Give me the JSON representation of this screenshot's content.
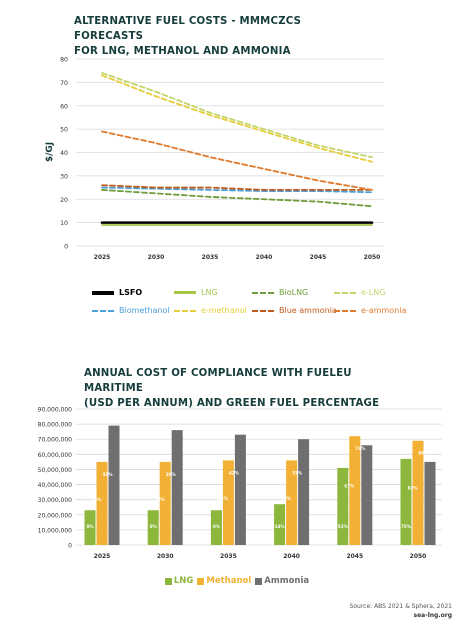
{
  "chart_data": [
    {
      "type": "line",
      "title": "ALTERNATIVE FUEL COSTS - MMMCZCS FORECASTS FOR LNG, METHANOL AND AMMONIA",
      "title_lines": [
        "ALTERNATIVE FUEL COSTS - MMMCZCS FORECASTS",
        "FOR LNG, METHANOL AND AMMONIA"
      ],
      "ylabel": "$/GJ",
      "xlabel": "",
      "x": [
        "2025",
        "2030",
        "2035",
        "2040",
        "2045",
        "2050"
      ],
      "yticks": [
        "0",
        "10",
        "20",
        "30",
        "40",
        "50",
        "60",
        "70",
        "80"
      ],
      "ylim": [
        0,
        80
      ],
      "grid": true,
      "legend_position": "bottom",
      "series": [
        {
          "name": "LSFO",
          "values": [
            10,
            10,
            10,
            10,
            10,
            10
          ],
          "color": "#000000",
          "style": "solid"
        },
        {
          "name": "LNG",
          "values": [
            9,
            9,
            9,
            9,
            9,
            9
          ],
          "color": "#a6c64a",
          "style": "solid"
        },
        {
          "name": "BioLNG",
          "values": [
            24,
            22.5,
            21,
            20,
            19,
            17
          ],
          "color": "#6e9c3a",
          "style": "dashed"
        },
        {
          "name": "e-LNG",
          "values": [
            74,
            66,
            57,
            50,
            43,
            38
          ],
          "color": "#c3d56a",
          "style": "dashed"
        },
        {
          "name": "Biomethanol",
          "values": [
            25,
            24.5,
            24,
            23.5,
            23.5,
            23
          ],
          "color": "#4a9fd8",
          "style": "dashed"
        },
        {
          "name": "e-methanol",
          "values": [
            73,
            64,
            56,
            49,
            42,
            36
          ],
          "color": "#e6cd3c",
          "style": "dashed"
        },
        {
          "name": "Blue ammonia",
          "values": [
            26,
            25,
            25,
            24,
            24,
            24
          ],
          "color": "#c25a1c",
          "style": "dashed"
        },
        {
          "name": "e-ammonia",
          "values": [
            49,
            44,
            38,
            33,
            28,
            24
          ],
          "color": "#e07a2e",
          "style": "dashed"
        }
      ]
    },
    {
      "type": "bar",
      "title": "ANNUAL COST OF COMPLIANCE WITH FUELEU MARITIME (USD PER ANNUM) AND GREEN FUEL PERCENTAGE",
      "title_lines": [
        "ANNUAL COST OF COMPLIANCE WITH FUELEU MARITIME",
        "(USD PER ANNUM) AND GREEN FUEL PERCENTAGE"
      ],
      "categories": [
        "2025",
        "2030",
        "2035",
        "2040",
        "2045",
        "2050"
      ],
      "yticks": [
        "0",
        "10,000,000",
        "20,000,000",
        "30,000,000",
        "40,000,000",
        "50,000,000",
        "60,000,000",
        "70,000,000",
        "80,000,000",
        "90,000,000"
      ],
      "ylim": [
        0,
        90000000
      ],
      "grid": true,
      "legend_position": "bottom",
      "series": [
        {
          "name": "LNG",
          "color": "#8cb63c",
          "values": [
            23000000,
            23000000,
            23000000,
            27000000,
            51000000,
            57000000
          ],
          "labels": [
            "0%",
            "0%",
            "0%",
            "14%",
            "52%",
            "75%"
          ]
        },
        {
          "name": "Methanol",
          "color": "#f2b134",
          "values": [
            55000000,
            55000000,
            56000000,
            56000000,
            72000000,
            69000000
          ],
          "labels": [
            "14%",
            "18%",
            "33%",
            "40%",
            "67%",
            "83%"
          ]
        },
        {
          "name": "Ammonia",
          "color": "#6f6f6f",
          "values": [
            79000000,
            76000000,
            73000000,
            70000000,
            66000000,
            55000000
          ],
          "labels": [
            "33%",
            "36%",
            "42%",
            "53%",
            "74%",
            "86%"
          ]
        }
      ],
      "methanol_top_labels": [
        "33%",
        "36%",
        "42%",
        "53%",
        "74%",
        "86%"
      ]
    }
  ],
  "source": {
    "line1": "Source: ABS 2021 & Sphera, 2021",
    "line2": "sea-lng.org"
  }
}
